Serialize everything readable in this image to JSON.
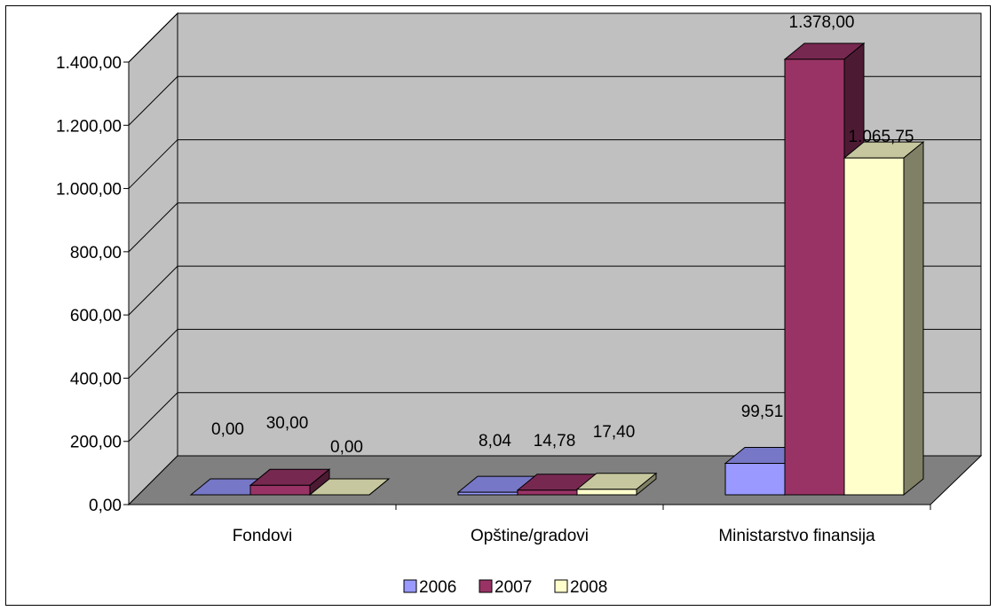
{
  "chart_data": {
    "type": "bar",
    "title": "",
    "xlabel": "",
    "ylabel": "",
    "categories": [
      "Fondovi",
      "Opštine/gradovi",
      "Ministarstvo finansija"
    ],
    "series": [
      {
        "name": "2006",
        "values": [
          0.0,
          8.04,
          99.51
        ],
        "labels": [
          "0,00",
          "8,04",
          "99,51"
        ],
        "color": "#9999ff"
      },
      {
        "name": "2007",
        "values": [
          30.0,
          14.78,
          1378.0
        ],
        "labels": [
          "30,00",
          "14,78",
          "1.378,00"
        ],
        "color": "#993366"
      },
      {
        "name": "2008",
        "values": [
          0.0,
          17.4,
          1065.75
        ],
        "labels": [
          "0,00",
          "17,40",
          "1.065,75"
        ],
        "color": "#ffffcc"
      }
    ],
    "ylim": [
      0,
      1400
    ],
    "yticks": [
      0,
      200,
      400,
      600,
      800,
      1000,
      1200,
      1400
    ],
    "ytick_labels": [
      "0,00",
      "200,00",
      "400,00",
      "600,00",
      "800,00",
      "1.000,00",
      "1.200,00",
      "1.400,00"
    ],
    "grid": true,
    "legend_position": "bottom",
    "style": "3d-clustered-column",
    "wall_color": "#c0c0c0",
    "floor_color": "#808080"
  }
}
